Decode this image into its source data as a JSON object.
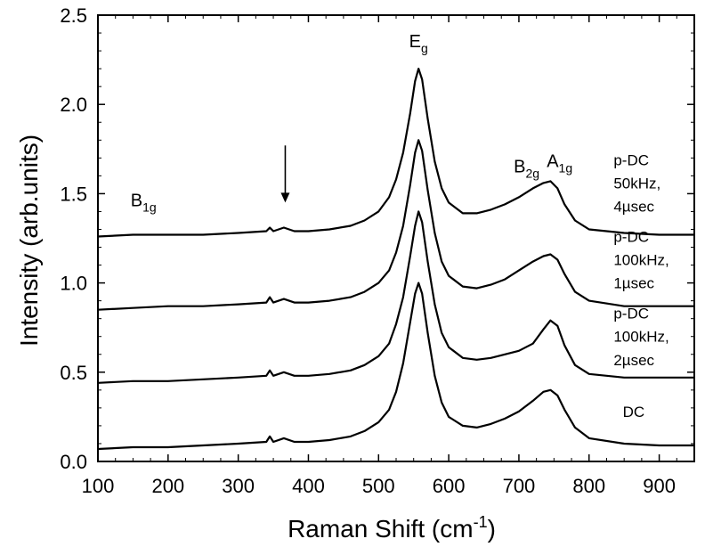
{
  "chart_data": {
    "type": "line",
    "xlabel": "Raman Shift (cm",
    "xlabel_sup": "-1",
    "xlabel_end": ")",
    "ylabel": "Intensity (arb.units)",
    "xlim": [
      100,
      950
    ],
    "ylim": [
      0.0,
      2.5
    ],
    "xticks": [
      100,
      200,
      300,
      400,
      500,
      600,
      700,
      800,
      900
    ],
    "yticks": [
      "0.0",
      "0.5",
      "1.0",
      "1.5",
      "2.0",
      "2.5"
    ],
    "grid": false,
    "peak_labels": [
      {
        "base": "B",
        "sub": "1g",
        "x": 165,
        "y": 1.43
      },
      {
        "base": "E",
        "sub": "g",
        "x": 557,
        "y": 2.32
      },
      {
        "base": "B",
        "sub": "2g",
        "x": 711,
        "y": 1.62
      },
      {
        "base": "A",
        "sub": "1g",
        "x": 758,
        "y": 1.65
      }
    ],
    "arrow": {
      "x": 367,
      "y_start": 1.77,
      "y_end": 1.45
    },
    "series": [
      {
        "lines": [
          "p-DC",
          "50kHz,",
          "4µsec"
        ],
        "label_x": 835,
        "label_y": [
          1.66,
          1.53,
          1.4
        ],
        "points": [
          [
            100,
            1.26
          ],
          [
            150,
            1.27
          ],
          [
            200,
            1.27
          ],
          [
            250,
            1.27
          ],
          [
            300,
            1.28
          ],
          [
            340,
            1.29
          ],
          [
            345,
            1.31
          ],
          [
            350,
            1.29
          ],
          [
            365,
            1.31
          ],
          [
            380,
            1.29
          ],
          [
            400,
            1.29
          ],
          [
            430,
            1.3
          ],
          [
            460,
            1.32
          ],
          [
            480,
            1.35
          ],
          [
            500,
            1.4
          ],
          [
            515,
            1.48
          ],
          [
            525,
            1.58
          ],
          [
            535,
            1.73
          ],
          [
            545,
            1.95
          ],
          [
            552,
            2.13
          ],
          [
            557,
            2.2
          ],
          [
            562,
            2.14
          ],
          [
            570,
            1.92
          ],
          [
            580,
            1.68
          ],
          [
            590,
            1.53
          ],
          [
            600,
            1.45
          ],
          [
            620,
            1.39
          ],
          [
            640,
            1.39
          ],
          [
            660,
            1.41
          ],
          [
            680,
            1.44
          ],
          [
            700,
            1.48
          ],
          [
            720,
            1.53
          ],
          [
            735,
            1.56
          ],
          [
            745,
            1.57
          ],
          [
            755,
            1.53
          ],
          [
            765,
            1.44
          ],
          [
            780,
            1.35
          ],
          [
            800,
            1.3
          ],
          [
            850,
            1.28
          ],
          [
            900,
            1.27
          ],
          [
            950,
            1.27
          ]
        ]
      },
      {
        "lines": [
          "p-DC",
          "100kHz,",
          "1µsec"
        ],
        "label_x": 835,
        "label_y": [
          1.23,
          1.1,
          0.97
        ],
        "points": [
          [
            100,
            0.85
          ],
          [
            150,
            0.86
          ],
          [
            200,
            0.87
          ],
          [
            250,
            0.87
          ],
          [
            300,
            0.88
          ],
          [
            340,
            0.89
          ],
          [
            345,
            0.92
          ],
          [
            350,
            0.89
          ],
          [
            365,
            0.91
          ],
          [
            380,
            0.89
          ],
          [
            400,
            0.89
          ],
          [
            430,
            0.9
          ],
          [
            460,
            0.92
          ],
          [
            480,
            0.95
          ],
          [
            500,
            1.0
          ],
          [
            515,
            1.07
          ],
          [
            525,
            1.17
          ],
          [
            535,
            1.32
          ],
          [
            545,
            1.55
          ],
          [
            552,
            1.73
          ],
          [
            557,
            1.8
          ],
          [
            562,
            1.74
          ],
          [
            570,
            1.52
          ],
          [
            580,
            1.28
          ],
          [
            590,
            1.12
          ],
          [
            600,
            1.04
          ],
          [
            620,
            0.98
          ],
          [
            640,
            0.97
          ],
          [
            660,
            0.99
          ],
          [
            680,
            1.02
          ],
          [
            700,
            1.07
          ],
          [
            720,
            1.12
          ],
          [
            735,
            1.15
          ],
          [
            745,
            1.16
          ],
          [
            755,
            1.13
          ],
          [
            765,
            1.05
          ],
          [
            780,
            0.95
          ],
          [
            800,
            0.9
          ],
          [
            850,
            0.87
          ],
          [
            900,
            0.87
          ],
          [
            950,
            0.87
          ]
        ]
      },
      {
        "lines": [
          "p-DC",
          "100kHz,",
          "2µsec"
        ],
        "label_x": 835,
        "label_y": [
          0.8,
          0.67,
          0.54
        ],
        "points": [
          [
            100,
            0.44
          ],
          [
            150,
            0.45
          ],
          [
            200,
            0.45
          ],
          [
            250,
            0.46
          ],
          [
            300,
            0.47
          ],
          [
            340,
            0.48
          ],
          [
            345,
            0.51
          ],
          [
            350,
            0.48
          ],
          [
            365,
            0.5
          ],
          [
            380,
            0.48
          ],
          [
            400,
            0.48
          ],
          [
            430,
            0.49
          ],
          [
            460,
            0.51
          ],
          [
            480,
            0.54
          ],
          [
            500,
            0.59
          ],
          [
            515,
            0.66
          ],
          [
            525,
            0.77
          ],
          [
            535,
            0.92
          ],
          [
            545,
            1.15
          ],
          [
            552,
            1.32
          ],
          [
            557,
            1.4
          ],
          [
            562,
            1.34
          ],
          [
            570,
            1.12
          ],
          [
            580,
            0.88
          ],
          [
            590,
            0.72
          ],
          [
            600,
            0.64
          ],
          [
            620,
            0.58
          ],
          [
            640,
            0.57
          ],
          [
            660,
            0.58
          ],
          [
            680,
            0.6
          ],
          [
            700,
            0.62
          ],
          [
            720,
            0.66
          ],
          [
            735,
            0.74
          ],
          [
            745,
            0.79
          ],
          [
            755,
            0.76
          ],
          [
            765,
            0.65
          ],
          [
            780,
            0.54
          ],
          [
            800,
            0.49
          ],
          [
            850,
            0.47
          ],
          [
            900,
            0.47
          ],
          [
            950,
            0.47
          ]
        ]
      },
      {
        "lines": [
          "DC"
        ],
        "label_x": 848,
        "label_y": [
          0.25
        ],
        "points": [
          [
            100,
            0.07
          ],
          [
            150,
            0.08
          ],
          [
            200,
            0.08
          ],
          [
            250,
            0.09
          ],
          [
            300,
            0.1
          ],
          [
            340,
            0.11
          ],
          [
            345,
            0.14
          ],
          [
            350,
            0.11
          ],
          [
            365,
            0.13
          ],
          [
            380,
            0.11
          ],
          [
            400,
            0.11
          ],
          [
            430,
            0.12
          ],
          [
            460,
            0.14
          ],
          [
            480,
            0.17
          ],
          [
            500,
            0.22
          ],
          [
            515,
            0.29
          ],
          [
            525,
            0.39
          ],
          [
            535,
            0.55
          ],
          [
            545,
            0.78
          ],
          [
            552,
            0.94
          ],
          [
            557,
            1.0
          ],
          [
            562,
            0.94
          ],
          [
            570,
            0.72
          ],
          [
            580,
            0.48
          ],
          [
            590,
            0.33
          ],
          [
            600,
            0.25
          ],
          [
            620,
            0.2
          ],
          [
            640,
            0.19
          ],
          [
            660,
            0.21
          ],
          [
            680,
            0.24
          ],
          [
            700,
            0.28
          ],
          [
            720,
            0.34
          ],
          [
            735,
            0.39
          ],
          [
            745,
            0.4
          ],
          [
            755,
            0.37
          ],
          [
            765,
            0.29
          ],
          [
            780,
            0.19
          ],
          [
            800,
            0.13
          ],
          [
            850,
            0.1
          ],
          [
            900,
            0.09
          ],
          [
            950,
            0.09
          ]
        ]
      }
    ]
  }
}
